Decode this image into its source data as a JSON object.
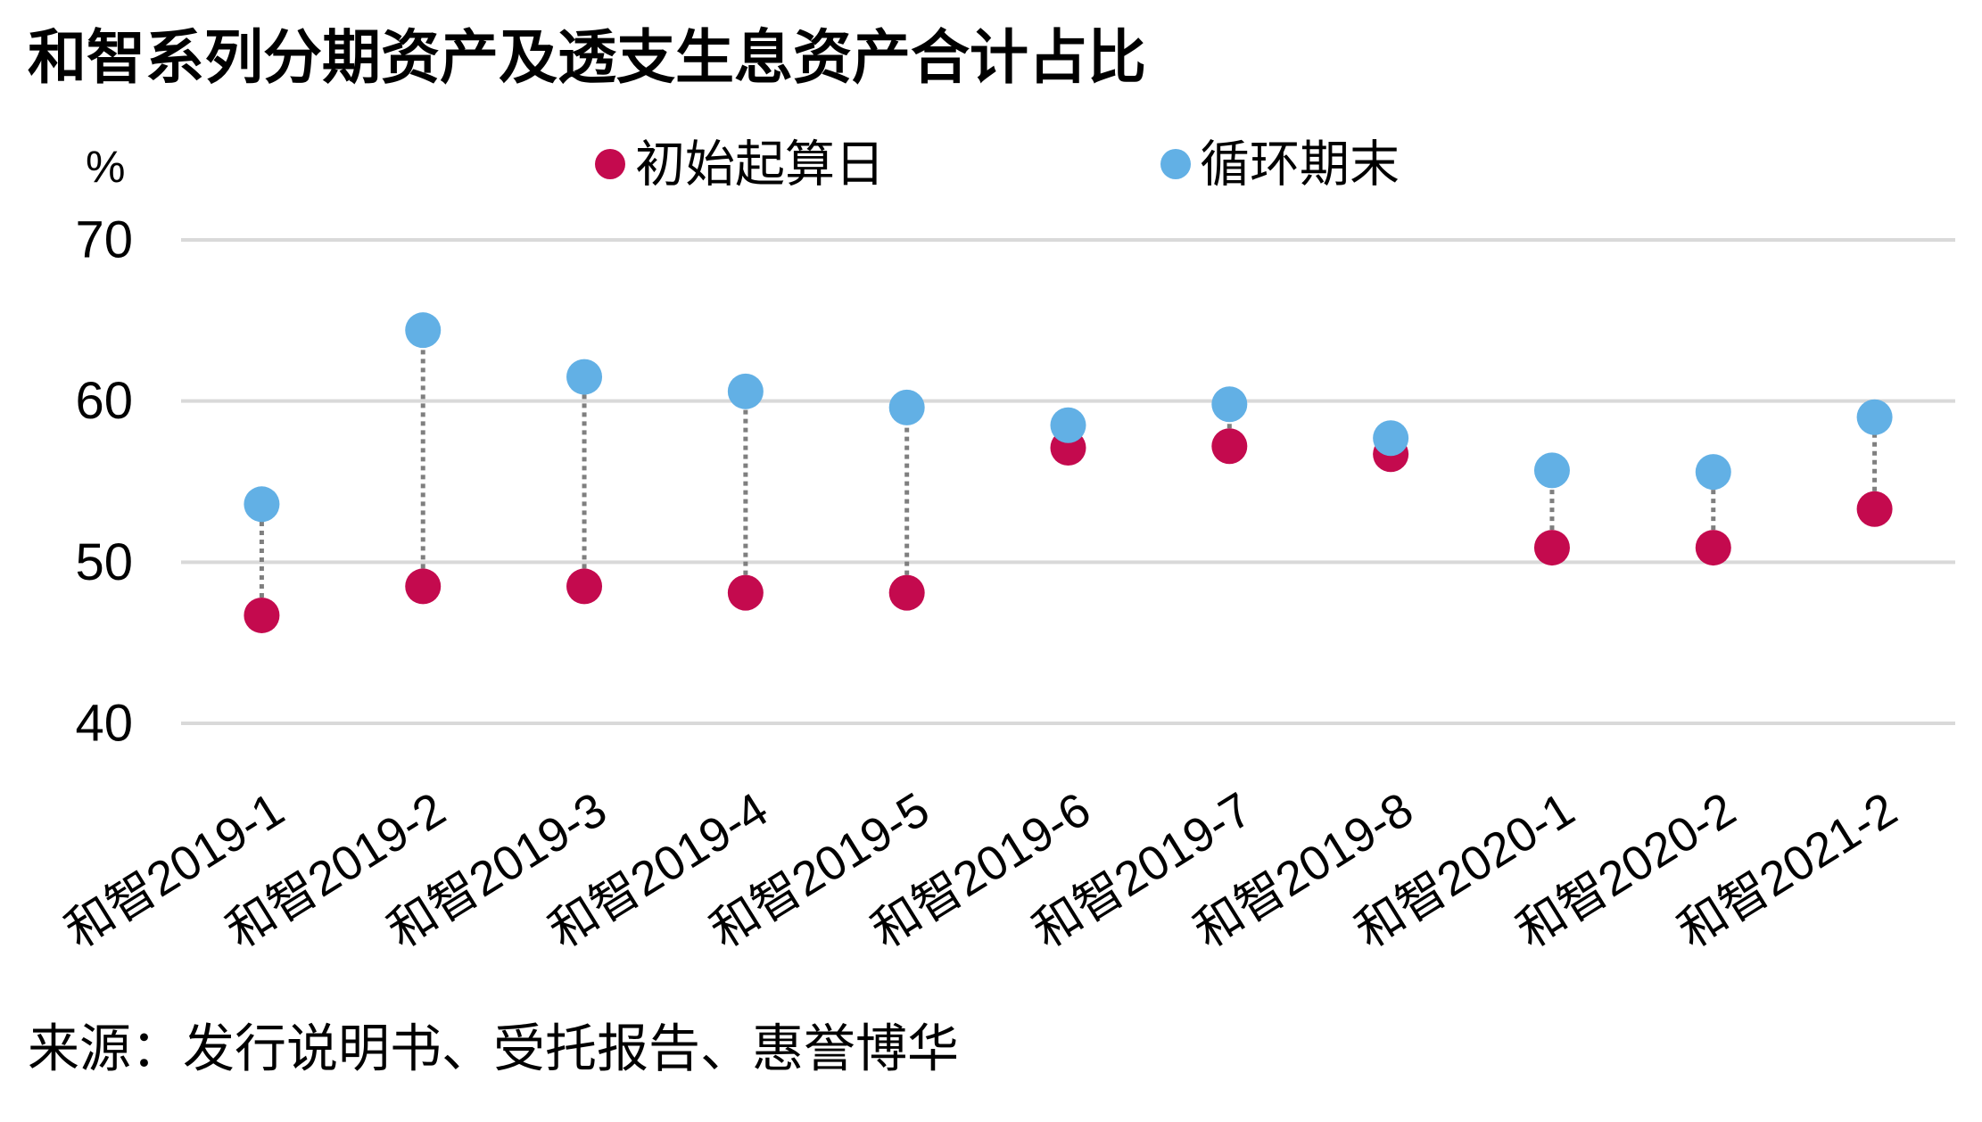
{
  "chart_data": {
    "type": "scatter",
    "title": "和智系列分期资产及透支生息资产合计占比",
    "ylabel": "%",
    "ylim": [
      40,
      70
    ],
    "yticks": [
      70,
      60,
      50,
      40
    ],
    "grid": true,
    "legend_position": "top",
    "categories": [
      "和智2019-1",
      "和智2019-2",
      "和智2019-3",
      "和智2019-4",
      "和智2019-5",
      "和智2019-6",
      "和智2019-7",
      "和智2019-8",
      "和智2020-1",
      "和智2020-2",
      "和智2021-2"
    ],
    "series": [
      {
        "name": "初始起算日",
        "color": "#C40A4E",
        "values": [
          46.7,
          48.5,
          48.5,
          48.1,
          48.1,
          57.1,
          57.2,
          56.7,
          50.9,
          50.9,
          53.3
        ]
      },
      {
        "name": "循环期末",
        "color": "#62B0E5",
        "values": [
          53.6,
          64.4,
          61.5,
          60.6,
          59.6,
          58.5,
          59.8,
          57.7,
          55.7,
          55.6,
          59.0
        ]
      }
    ],
    "colors": {
      "connector": "#7F7F7F",
      "grid": "#D9D9D9"
    },
    "source": "来源：发行说明书、受托报告、惠誉博华"
  }
}
